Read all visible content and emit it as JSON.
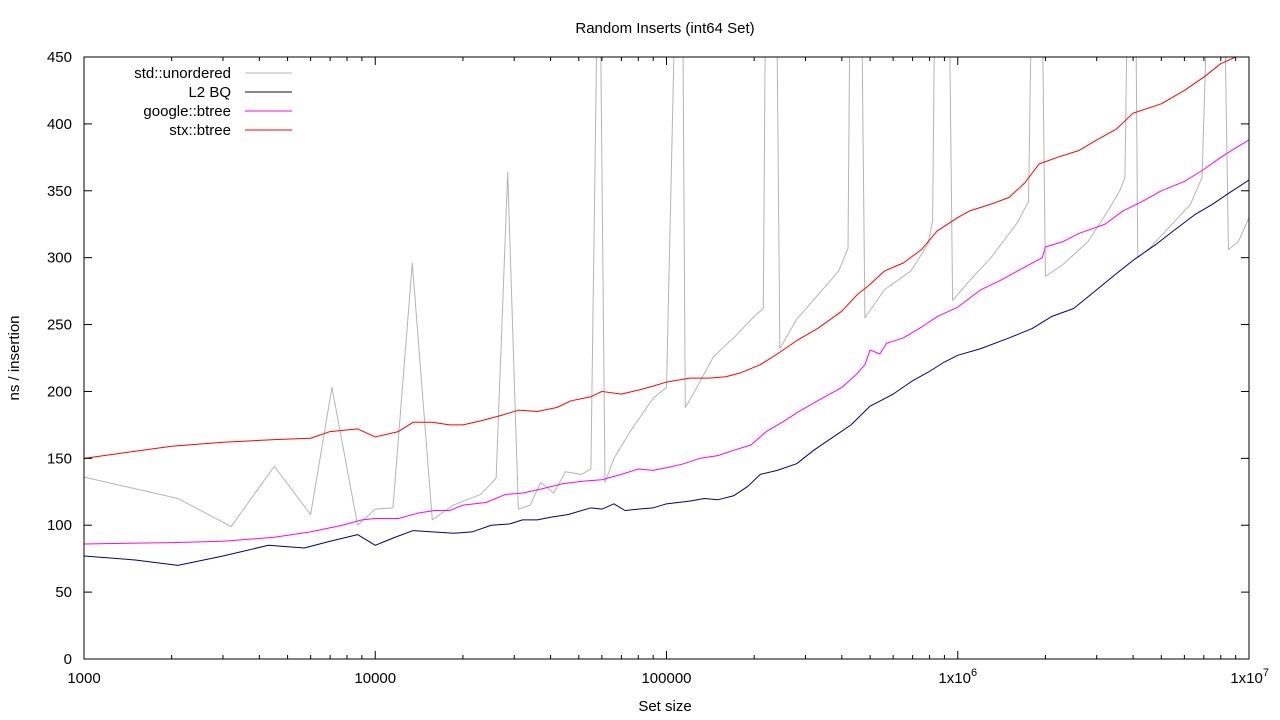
{
  "chart_data": {
    "type": "line",
    "title": "Random Inserts (int64 Set)",
    "xlabel": "Set size",
    "ylabel": "ns / insertion",
    "xscale": "log",
    "xlim": [
      1000,
      10000000
    ],
    "ylim": [
      0,
      450
    ],
    "grid": false,
    "legend_position": "top-left",
    "x_ticks": [
      {
        "value": 1000,
        "label": "1000"
      },
      {
        "value": 10000,
        "label": "10000"
      },
      {
        "value": 100000,
        "label": "100000"
      },
      {
        "value": 1000000,
        "label": "1x10",
        "exp": "6"
      },
      {
        "value": 10000000,
        "label": "1x10",
        "exp": "7"
      }
    ],
    "y_ticks": [
      {
        "value": 0,
        "label": "0"
      },
      {
        "value": 50,
        "label": "50"
      },
      {
        "value": 100,
        "label": "100"
      },
      {
        "value": 150,
        "label": "150"
      },
      {
        "value": 200,
        "label": "200"
      },
      {
        "value": 250,
        "label": "250"
      },
      {
        "value": 300,
        "label": "300"
      },
      {
        "value": 350,
        "label": "350"
      },
      {
        "value": 400,
        "label": "400"
      },
      {
        "value": 450,
        "label": "450"
      }
    ],
    "series": [
      {
        "name": "std::unordered",
        "color": "#b4b4b4",
        "points": [
          [
            1000,
            136
          ],
          [
            2100,
            120
          ],
          [
            3200,
            99
          ],
          [
            4500,
            144
          ],
          [
            6000,
            108
          ],
          [
            7100,
            203
          ],
          [
            8700,
            100
          ],
          [
            10000,
            112
          ],
          [
            11500,
            113
          ],
          [
            13400,
            296
          ],
          [
            15700,
            104
          ],
          [
            18500,
            115
          ],
          [
            23000,
            123
          ],
          [
            26000,
            135
          ],
          [
            28500,
            364
          ],
          [
            31000,
            112
          ],
          [
            34000,
            115
          ],
          [
            37000,
            132
          ],
          [
            41000,
            124
          ],
          [
            45000,
            140
          ],
          [
            51000,
            138
          ],
          [
            55000,
            142
          ],
          [
            57500,
            450
          ],
          [
            59500,
            450
          ],
          [
            61500,
            132
          ],
          [
            66000,
            150
          ],
          [
            75000,
            170
          ],
          [
            90000,
            195
          ],
          [
            100000,
            203
          ],
          [
            106000,
            450
          ],
          [
            114000,
            450
          ],
          [
            116000,
            188
          ],
          [
            125000,
            200
          ],
          [
            145000,
            226
          ],
          [
            170000,
            240
          ],
          [
            200000,
            256
          ],
          [
            215000,
            262
          ],
          [
            218000,
            450
          ],
          [
            240000,
            450
          ],
          [
            245000,
            232
          ],
          [
            280000,
            254
          ],
          [
            340000,
            275
          ],
          [
            390000,
            290
          ],
          [
            420000,
            307
          ],
          [
            425000,
            450
          ],
          [
            470000,
            450
          ],
          [
            480000,
            255
          ],
          [
            560000,
            276
          ],
          [
            690000,
            290
          ],
          [
            790000,
            310
          ],
          [
            820000,
            328
          ],
          [
            830000,
            450
          ],
          [
            940000,
            450
          ],
          [
            960000,
            268
          ],
          [
            1100000,
            283
          ],
          [
            1300000,
            300
          ],
          [
            1600000,
            326
          ],
          [
            1750000,
            342
          ],
          [
            1780000,
            450
          ],
          [
            1960000,
            450
          ],
          [
            2000000,
            286
          ],
          [
            2300000,
            295
          ],
          [
            2800000,
            312
          ],
          [
            3300000,
            336
          ],
          [
            3600000,
            350
          ],
          [
            3750000,
            360
          ],
          [
            3800000,
            450
          ],
          [
            4100000,
            450
          ],
          [
            4150000,
            300
          ],
          [
            4600000,
            308
          ],
          [
            5600000,
            328
          ],
          [
            6300000,
            340
          ],
          [
            6900000,
            360
          ],
          [
            7100000,
            450
          ],
          [
            8300000,
            450
          ],
          [
            8500000,
            306
          ],
          [
            9200000,
            312
          ],
          [
            10000000,
            330
          ]
        ]
      },
      {
        "name": "L2 BQ",
        "color": "#00007f",
        "points": [
          [
            1000,
            77
          ],
          [
            1500,
            74
          ],
          [
            2100,
            70
          ],
          [
            3000,
            77
          ],
          [
            4300,
            85
          ],
          [
            5700,
            83
          ],
          [
            7000,
            88
          ],
          [
            8700,
            93
          ],
          [
            10000,
            85
          ],
          [
            11700,
            91
          ],
          [
            13500,
            96
          ],
          [
            15700,
            95
          ],
          [
            18600,
            94
          ],
          [
            21500,
            95
          ],
          [
            25000,
            100
          ],
          [
            29000,
            101
          ],
          [
            32000,
            104
          ],
          [
            36000,
            104
          ],
          [
            40000,
            106
          ],
          [
            46000,
            108
          ],
          [
            55000,
            113
          ],
          [
            60000,
            112
          ],
          [
            66000,
            116
          ],
          [
            72000,
            111
          ],
          [
            80000,
            112
          ],
          [
            90000,
            113
          ],
          [
            100000,
            116
          ],
          [
            120000,
            118
          ],
          [
            135000,
            120
          ],
          [
            150000,
            119
          ],
          [
            170000,
            122
          ],
          [
            190000,
            129
          ],
          [
            210000,
            138
          ],
          [
            240000,
            141
          ],
          [
            280000,
            146
          ],
          [
            320000,
            156
          ],
          [
            380000,
            167
          ],
          [
            430000,
            175
          ],
          [
            500000,
            189
          ],
          [
            600000,
            198
          ],
          [
            700000,
            208
          ],
          [
            800000,
            215
          ],
          [
            900000,
            222
          ],
          [
            1000000,
            227
          ],
          [
            1200000,
            232
          ],
          [
            1500000,
            240
          ],
          [
            1800000,
            247
          ],
          [
            2100000,
            256
          ],
          [
            2500000,
            262
          ],
          [
            3000000,
            276
          ],
          [
            3500000,
            288
          ],
          [
            4000000,
            298
          ],
          [
            4800000,
            310
          ],
          [
            5500000,
            320
          ],
          [
            6500000,
            332
          ],
          [
            7500000,
            340
          ],
          [
            8500000,
            348
          ],
          [
            10000000,
            358
          ]
        ]
      },
      {
        "name": "google::btree",
        "color": "#ff00ff",
        "points": [
          [
            1000,
            86
          ],
          [
            2000,
            87
          ],
          [
            3000,
            88
          ],
          [
            4500,
            91
          ],
          [
            6000,
            95
          ],
          [
            7700,
            100
          ],
          [
            9000,
            104
          ],
          [
            10000,
            105
          ],
          [
            12000,
            105
          ],
          [
            14000,
            109
          ],
          [
            16000,
            111
          ],
          [
            18000,
            111
          ],
          [
            20000,
            115
          ],
          [
            24000,
            117
          ],
          [
            28000,
            123
          ],
          [
            32000,
            124
          ],
          [
            37000,
            127
          ],
          [
            44000,
            131
          ],
          [
            52000,
            133
          ],
          [
            60000,
            134
          ],
          [
            70000,
            138
          ],
          [
            80000,
            142
          ],
          [
            90000,
            141
          ],
          [
            100000,
            143
          ],
          [
            115000,
            146
          ],
          [
            130000,
            150
          ],
          [
            150000,
            152
          ],
          [
            170000,
            156
          ],
          [
            195000,
            160
          ],
          [
            220000,
            170
          ],
          [
            250000,
            177
          ],
          [
            280000,
            184
          ],
          [
            330000,
            193
          ],
          [
            400000,
            203
          ],
          [
            450000,
            213
          ],
          [
            480000,
            220
          ],
          [
            500000,
            231
          ],
          [
            540000,
            228
          ],
          [
            570000,
            236
          ],
          [
            650000,
            240
          ],
          [
            750000,
            248
          ],
          [
            850000,
            256
          ],
          [
            1000000,
            263
          ],
          [
            1200000,
            276
          ],
          [
            1400000,
            283
          ],
          [
            1700000,
            293
          ],
          [
            1950000,
            300
          ],
          [
            2000000,
            308
          ],
          [
            2300000,
            312
          ],
          [
            2600000,
            318
          ],
          [
            3200000,
            325
          ],
          [
            3700000,
            335
          ],
          [
            4300000,
            342
          ],
          [
            5000000,
            350
          ],
          [
            6000000,
            357
          ],
          [
            7000000,
            366
          ],
          [
            8000000,
            375
          ],
          [
            9000000,
            382
          ],
          [
            10000000,
            388
          ]
        ]
      },
      {
        "name": "stx::btree",
        "color": "#ff0000",
        "points": [
          [
            1000,
            150
          ],
          [
            2000,
            159
          ],
          [
            3000,
            162
          ],
          [
            4500,
            164
          ],
          [
            6000,
            165
          ],
          [
            7000,
            170
          ],
          [
            8700,
            172
          ],
          [
            10000,
            166
          ],
          [
            12000,
            170
          ],
          [
            13500,
            177
          ],
          [
            15700,
            177
          ],
          [
            18000,
            175
          ],
          [
            20000,
            175
          ],
          [
            23000,
            178
          ],
          [
            27000,
            182
          ],
          [
            31000,
            186
          ],
          [
            36000,
            185
          ],
          [
            42000,
            188
          ],
          [
            47000,
            193
          ],
          [
            55000,
            196
          ],
          [
            60000,
            200
          ],
          [
            70000,
            198
          ],
          [
            80000,
            201
          ],
          [
            90000,
            204
          ],
          [
            100000,
            207
          ],
          [
            120000,
            210
          ],
          [
            140000,
            210
          ],
          [
            160000,
            211
          ],
          [
            180000,
            214
          ],
          [
            210000,
            220
          ],
          [
            240000,
            228
          ],
          [
            280000,
            238
          ],
          [
            330000,
            247
          ],
          [
            400000,
            260
          ],
          [
            450000,
            272
          ],
          [
            500000,
            280
          ],
          [
            560000,
            290
          ],
          [
            650000,
            296
          ],
          [
            750000,
            306
          ],
          [
            850000,
            320
          ],
          [
            1000000,
            330
          ],
          [
            1100000,
            335
          ],
          [
            1300000,
            340
          ],
          [
            1500000,
            345
          ],
          [
            1700000,
            356
          ],
          [
            1900000,
            370
          ],
          [
            2200000,
            375
          ],
          [
            2600000,
            380
          ],
          [
            3000000,
            388
          ],
          [
            3500000,
            396
          ],
          [
            4000000,
            408
          ],
          [
            5000000,
            415
          ],
          [
            6000000,
            425
          ],
          [
            7000000,
            435
          ],
          [
            8000000,
            445
          ],
          [
            9000000,
            450
          ],
          [
            10000000,
            454
          ]
        ]
      }
    ]
  }
}
